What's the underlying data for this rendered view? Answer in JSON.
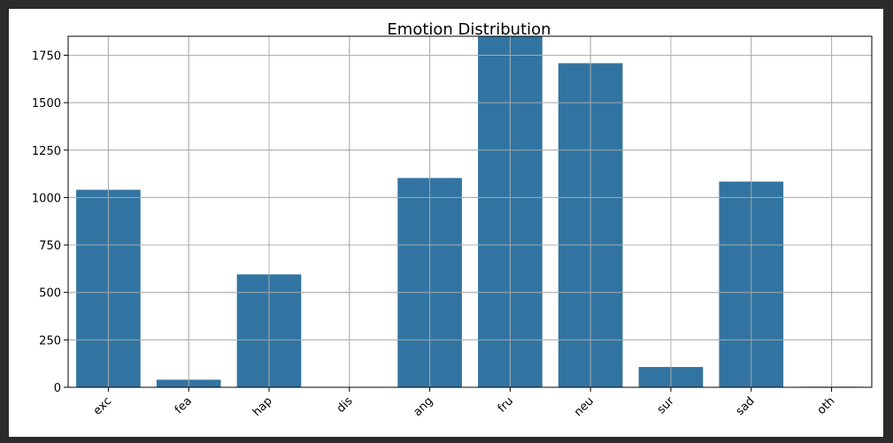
{
  "chart_data": {
    "type": "bar",
    "title": "Emotion Distribution",
    "xlabel": "",
    "ylabel": "",
    "categories": [
      "exc",
      "fea",
      "hap",
      "dis",
      "ang",
      "fru",
      "neu",
      "sur",
      "sad",
      "oth"
    ],
    "values": [
      1041,
      40,
      595,
      2,
      1103,
      1849,
      1708,
      107,
      1084,
      3
    ],
    "ylim": [
      0,
      1850
    ],
    "yticks": [
      0,
      250,
      500,
      750,
      1000,
      1250,
      1500,
      1750
    ],
    "ytick_labels": [
      "0",
      "250",
      "500",
      "750",
      "1000",
      "1250",
      "1500",
      "1750"
    ],
    "grid": true,
    "xtick_rotation": 45,
    "colors": {
      "bar": "#3274a1",
      "grid": "#b0b0b0",
      "axis": "#000000"
    }
  }
}
